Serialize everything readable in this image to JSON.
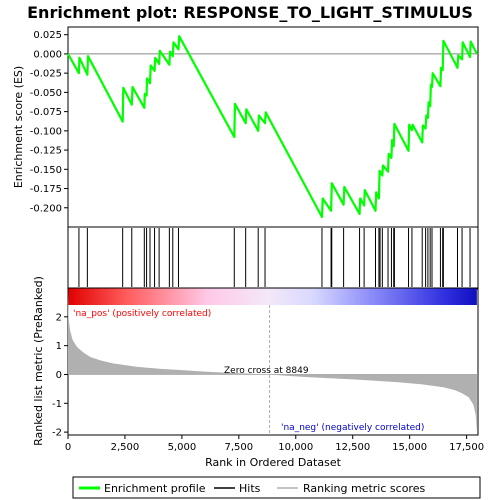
{
  "chart_data": {
    "type": "line",
    "title": "Enrichment plot: RESPONSE_TO_LIGHT_STIMULUS",
    "xlabel": "Rank in Ordered Dataset",
    "ylabel_top": "Enrichment score (ES)",
    "ylabel_bottom": "Ranked list metric (PreRanked)",
    "xlim": [
      0,
      18000
    ],
    "es_ylim": [
      -0.225,
      0.035
    ],
    "metric_ylim": [
      -2.1,
      3.0
    ],
    "x_ticks": [
      0,
      2500,
      5000,
      7500,
      10000,
      12500,
      15000,
      17500
    ],
    "x_tick_labels": [
      "0",
      "2,500",
      "5,000",
      "7,500",
      "10,000",
      "12,500",
      "15,000",
      "17,500"
    ],
    "es_ticks": [
      0.025,
      0.0,
      -0.025,
      -0.05,
      -0.075,
      -0.1,
      -0.125,
      -0.15,
      -0.175,
      -0.2
    ],
    "es_tick_labels": [
      "0.025",
      "0.000",
      "-0.025",
      "-0.050",
      "-0.075",
      "-0.100",
      "-0.125",
      "-0.150",
      "-0.175",
      "-0.200"
    ],
    "metric_ticks": [
      2,
      1,
      0,
      -1,
      -2
    ],
    "metric_tick_labels": [
      "2",
      "1",
      "0",
      "-1",
      "-2"
    ],
    "enrichment_profile": {
      "x": [
        0,
        480,
        500,
        850,
        880,
        2400,
        2430,
        2800,
        2830,
        3350,
        3370,
        3450,
        3470,
        3600,
        3630,
        3800,
        3830,
        4000,
        4030,
        4450,
        4480,
        4600,
        4630,
        4850,
        4880,
        7300,
        7330,
        7800,
        7830,
        8350,
        8380,
        8650,
        8680,
        11150,
        11180,
        11550,
        11580,
        12100,
        12130,
        12800,
        12830,
        13000,
        13030,
        13500,
        13530,
        13650,
        13680,
        13800,
        13830,
        14050,
        14080,
        14200,
        14230,
        14300,
        14330,
        14950,
        14980,
        15100,
        15130,
        15550,
        15580,
        15700,
        15730,
        15800,
        15830,
        15900,
        15930,
        15980,
        16010,
        16350,
        16380,
        16450,
        16480,
        17100,
        17130,
        17300,
        17330,
        17650,
        17680,
        17950
      ],
      "y": [
        0.0,
        -0.025,
        -0.005,
        -0.027,
        -0.003,
        -0.088,
        -0.044,
        -0.066,
        -0.043,
        -0.07,
        -0.052,
        -0.054,
        -0.032,
        -0.038,
        -0.015,
        -0.022,
        -0.005,
        -0.013,
        0.004,
        -0.014,
        0.003,
        -0.003,
        0.015,
        0.006,
        0.023,
        -0.108,
        -0.065,
        -0.09,
        -0.072,
        -0.1,
        -0.08,
        -0.09,
        -0.076,
        -0.212,
        -0.188,
        -0.204,
        -0.168,
        -0.196,
        -0.173,
        -0.208,
        -0.188,
        -0.197,
        -0.177,
        -0.204,
        -0.18,
        -0.188,
        -0.152,
        -0.158,
        -0.145,
        -0.153,
        -0.13,
        -0.135,
        -0.112,
        -0.12,
        -0.091,
        -0.126,
        -0.092,
        -0.099,
        -0.092,
        -0.115,
        -0.093,
        -0.097,
        -0.08,
        -0.083,
        -0.063,
        -0.068,
        -0.04,
        -0.043,
        -0.025,
        -0.042,
        -0.018,
        -0.021,
        0.017,
        -0.018,
        -0.002,
        -0.007,
        0.015,
        -0.004,
        0.016,
        0.0
      ]
    },
    "hits": [
      480,
      850,
      2400,
      2800,
      3350,
      3450,
      3600,
      3800,
      4000,
      4450,
      4600,
      4850,
      7300,
      7800,
      8350,
      8650,
      11150,
      11550,
      11580,
      12100,
      12800,
      13000,
      13500,
      13650,
      13700,
      13800,
      14050,
      14200,
      14300,
      14330,
      14950,
      15100,
      15550,
      15700,
      15800,
      15900,
      15980,
      16350,
      16450,
      16480,
      17100,
      17300,
      17650
    ],
    "ranking_metric": {
      "x": [
        0,
        30,
        100,
        200,
        400,
        700,
        1000,
        1500,
        2000,
        3000,
        4000,
        5000,
        6000,
        7000,
        8000,
        8849,
        9500,
        10500,
        11500,
        12500,
        13500,
        14500,
        15500,
        16000,
        16500,
        17000,
        17300,
        17600,
        17800,
        17900,
        17950
      ],
      "y": [
        3.0,
        1.9,
        1.5,
        1.2,
        0.95,
        0.75,
        0.6,
        0.47,
        0.38,
        0.27,
        0.2,
        0.15,
        0.1,
        0.06,
        0.03,
        0.0,
        -0.04,
        -0.09,
        -0.13,
        -0.17,
        -0.22,
        -0.27,
        -0.34,
        -0.39,
        -0.45,
        -0.55,
        -0.65,
        -0.8,
        -1.05,
        -1.4,
        -2.0
      ]
    },
    "zero_cross": 8849,
    "zero_cross_label": "Zero cross at 8849",
    "pos_label": "'na_pos' (positively correlated)",
    "neg_label": "'na_neg' (negatively correlated)",
    "legend": {
      "enrichment": "Enrichment profile",
      "hits": "Hits",
      "ranking": "Ranking metric scores"
    },
    "colors": {
      "profile": "#00ff00",
      "hits": "#000000",
      "metric": "#b0b0b0",
      "pos_label": "#ff0000",
      "neg_label": "#0000cc",
      "zero_line": "#aaaaaa"
    }
  }
}
